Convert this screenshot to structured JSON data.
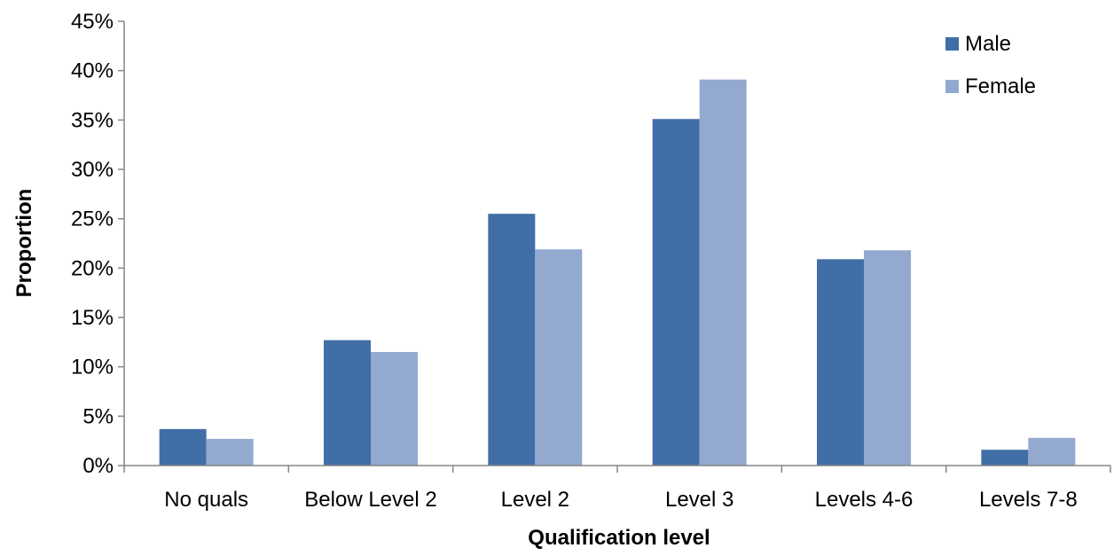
{
  "chart_data": {
    "type": "bar",
    "title": "",
    "xlabel": "Qualification level",
    "ylabel": "Proportion",
    "categories": [
      "No quals",
      "Below Level 2",
      "Level 2",
      "Level 3",
      "Levels 4-6",
      "Levels 7-8"
    ],
    "series": [
      {
        "name": "Male",
        "color": "#416EA6",
        "values": [
          0.037,
          0.127,
          0.255,
          0.351,
          0.209,
          0.016
        ]
      },
      {
        "name": "Female",
        "color": "#93A9CF",
        "values": [
          0.027,
          0.115,
          0.219,
          0.391,
          0.218,
          0.028
        ]
      }
    ],
    "ylim": [
      0,
      0.45
    ],
    "yticks": [
      0,
      0.05,
      0.1,
      0.15,
      0.2,
      0.25,
      0.3,
      0.35,
      0.4,
      0.45
    ],
    "ytick_labels": [
      "0%",
      "5%",
      "10%",
      "15%",
      "20%",
      "25%",
      "30%",
      "35%",
      "40%",
      "45%"
    ],
    "grid": false,
    "legend_position": "top-right"
  }
}
